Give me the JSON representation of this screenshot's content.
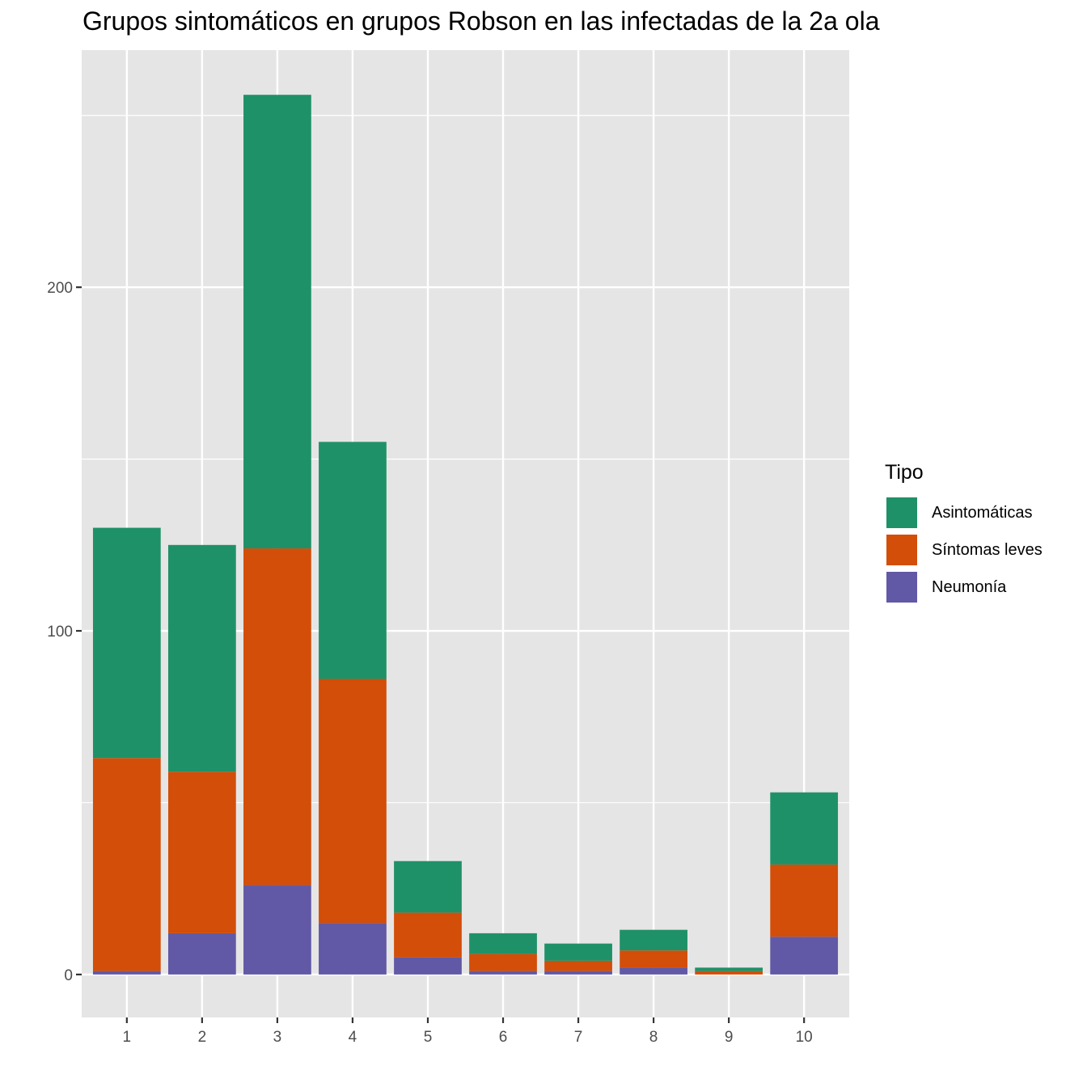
{
  "chart_data": {
    "type": "bar",
    "stacked": true,
    "title": "Grupos sintomáticos en grupos Robson en las infectadas de la 2a ola",
    "xlabel": "",
    "ylabel": "",
    "categories": [
      "1",
      "2",
      "3",
      "4",
      "5",
      "6",
      "7",
      "8",
      "9",
      "10"
    ],
    "y_ticks": [
      0,
      100,
      200
    ],
    "y_tick_labels": [
      "0",
      "100",
      "200"
    ],
    "ylim": [
      -12.5,
      269
    ],
    "grid": true,
    "legend": {
      "title": "Tipo",
      "position": "right"
    },
    "series": [
      {
        "name": "Neumonía",
        "color": "#6159A5",
        "values": [
          1,
          12,
          26,
          15,
          5,
          1,
          1,
          2,
          0,
          11
        ]
      },
      {
        "name": "Síntomas leves",
        "color": "#D24E09",
        "values": [
          62,
          47,
          98,
          71,
          13,
          5,
          3,
          5,
          1,
          21
        ]
      },
      {
        "name": "Asintomáticas",
        "color": "#1F9168",
        "values": [
          67,
          66,
          132,
          69,
          15,
          6,
          5,
          6,
          1,
          21
        ]
      }
    ],
    "legend_order": [
      "Asintomáticas",
      "Síntomas leves",
      "Neumonía"
    ]
  }
}
